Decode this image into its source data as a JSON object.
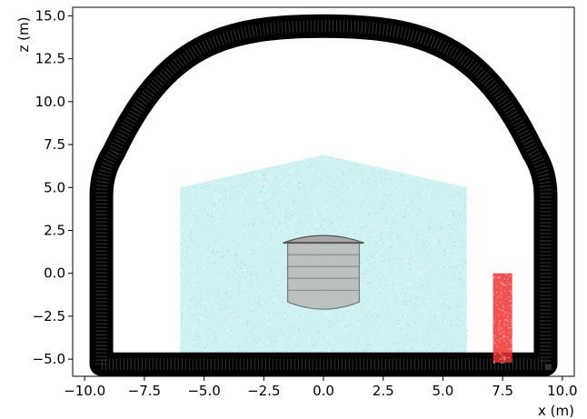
{
  "chart_data": {
    "type": "scatter",
    "title": "",
    "xlabel": "x (m)",
    "ylabel": "z (m)",
    "xlim": [
      -10.5,
      10.5
    ],
    "ylim": [
      -6.0,
      15.5
    ],
    "grid": false,
    "x_ticks": [
      -10.0,
      -7.5,
      -5.0,
      -2.5,
      0.0,
      2.5,
      5.0,
      7.5,
      10.0
    ],
    "y_ticks": [
      -5.0,
      -2.5,
      0.0,
      2.5,
      5.0,
      7.5,
      10.0,
      12.5,
      15.0
    ],
    "x_tick_labels": [
      "−10.0",
      "−7.5",
      "−5.0",
      "−2.5",
      "0.0",
      "2.5",
      "5.0",
      "7.5",
      "10.0"
    ],
    "y_tick_labels": [
      "−5.0",
      "−2.5",
      "0.0",
      "2.5",
      "5.0",
      "7.5",
      "10.0",
      "12.5",
      "15.0"
    ],
    "series": [
      {
        "color": "#000000",
        "shape": "arched-cavern-wall",
        "floor_z": -5.3,
        "wall_x": [
          -9.3,
          9.3
        ],
        "wall_top_z": 5.5,
        "arch_apex_z": 14.4,
        "thickness": 0.45
      },
      {
        "color": "#bfecee",
        "shape": "point-cloud",
        "x_range": [
          -6.0,
          6.0
        ],
        "z_bottom": -5.0,
        "z_top_edges": 5.0,
        "z_top_center": 6.9
      },
      {
        "color": "#8a8a8a",
        "shape": "cylindrical-vessel",
        "x_range": [
          -1.5,
          1.5
        ],
        "z_range": [
          -2.2,
          2.2
        ]
      },
      {
        "color": "#ee3333",
        "shape": "rectangle",
        "x_range": [
          7.1,
          7.9
        ],
        "z_range": [
          -5.2,
          0.0
        ]
      }
    ]
  }
}
